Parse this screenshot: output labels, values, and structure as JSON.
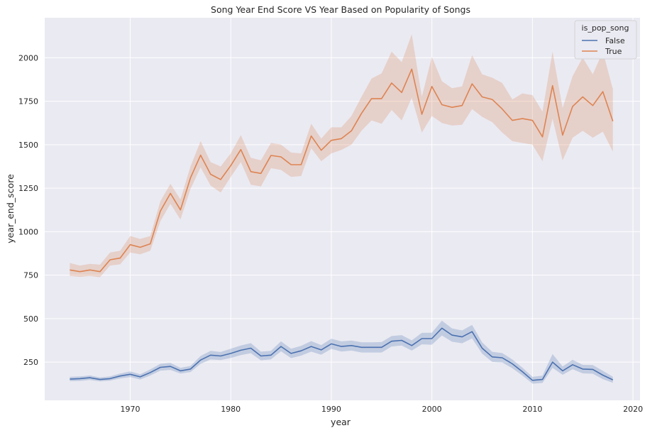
{
  "chart_data": {
    "type": "line",
    "title": "Song Year End Score VS Year Based on Popularity of Songs",
    "xlabel": "year",
    "ylabel": "year_end_score",
    "xlim": [
      1961.5,
      2020.7
    ],
    "ylim": [
      30,
      2230
    ],
    "x_ticks": [
      1970,
      1980,
      1990,
      2000,
      2010,
      2020
    ],
    "y_ticks": [
      250,
      500,
      750,
      1000,
      1250,
      1500,
      1750,
      2000
    ],
    "grid": true,
    "legend": {
      "title": "is_pop_song",
      "placement": "top-right"
    },
    "series": [
      {
        "name": "False",
        "color": "#4c72b0",
        "x": [
          1964,
          1965,
          1966,
          1967,
          1968,
          1969,
          1970,
          1971,
          1972,
          1973,
          1974,
          1975,
          1976,
          1977,
          1978,
          1979,
          1980,
          1981,
          1982,
          1983,
          1984,
          1985,
          1986,
          1987,
          1988,
          1989,
          1990,
          1991,
          1992,
          1993,
          1994,
          1995,
          1996,
          1997,
          1998,
          1999,
          2000,
          2001,
          2002,
          2003,
          2004,
          2005,
          2006,
          2007,
          2008,
          2009,
          2010,
          2011,
          2012,
          2013,
          2014,
          2015,
          2016,
          2017,
          2018
        ],
        "values": [
          152,
          155,
          160,
          150,
          155,
          170,
          180,
          165,
          190,
          220,
          225,
          200,
          210,
          262,
          290,
          285,
          300,
          318,
          330,
          285,
          290,
          340,
          300,
          315,
          340,
          320,
          355,
          340,
          345,
          335,
          335,
          335,
          370,
          375,
          345,
          385,
          385,
          445,
          405,
          395,
          425,
          330,
          280,
          275,
          240,
          195,
          145,
          150,
          250,
          200,
          235,
          210,
          208,
          175,
          148
        ],
        "lower": [
          140,
          142,
          147,
          139,
          143,
          156,
          164,
          150,
          173,
          201,
          205,
          184,
          193,
          240,
          265,
          262,
          274,
          290,
          301,
          260,
          266,
          312,
          273,
          287,
          310,
          292,
          326,
          311,
          316,
          305,
          305,
          305,
          340,
          345,
          316,
          352,
          350,
          403,
          367,
          358,
          386,
          298,
          251,
          248,
          215,
          173,
          126,
          130,
          217,
          177,
          209,
          185,
          183,
          152,
          131
        ],
        "upper": [
          165,
          168,
          173,
          162,
          168,
          184,
          196,
          180,
          208,
          240,
          245,
          217,
          228,
          285,
          315,
          308,
          327,
          345,
          359,
          310,
          315,
          369,
          327,
          343,
          371,
          348,
          384,
          369,
          374,
          364,
          364,
          365,
          400,
          405,
          375,
          418,
          419,
          488,
          444,
          432,
          464,
          363,
          309,
          302,
          265,
          218,
          165,
          172,
          296,
          225,
          263,
          234,
          233,
          200,
          166
        ]
      },
      {
        "name": "True",
        "color": "#dd8452",
        "x": [
          1964,
          1965,
          1966,
          1967,
          1968,
          1969,
          1970,
          1971,
          1972,
          1973,
          1974,
          1975,
          1976,
          1977,
          1978,
          1979,
          1980,
          1981,
          1982,
          1983,
          1984,
          1985,
          1986,
          1987,
          1988,
          1989,
          1990,
          1991,
          1992,
          1993,
          1994,
          1995,
          1996,
          1997,
          1998,
          1999,
          2000,
          2001,
          2002,
          2003,
          2004,
          2005,
          2006,
          2007,
          2008,
          2009,
          2010,
          2011,
          2012,
          2013,
          2014,
          2015,
          2016,
          2017,
          2018
        ],
        "values": [
          780,
          770,
          780,
          770,
          838,
          848,
          925,
          910,
          930,
          1118,
          1220,
          1125,
          1310,
          1440,
          1330,
          1300,
          1380,
          1472,
          1345,
          1335,
          1438,
          1430,
          1385,
          1385,
          1550,
          1468,
          1525,
          1535,
          1580,
          1680,
          1765,
          1765,
          1855,
          1800,
          1935,
          1675,
          1835,
          1730,
          1715,
          1725,
          1850,
          1775,
          1760,
          1705,
          1640,
          1650,
          1640,
          1545,
          1840,
          1555,
          1720,
          1775,
          1725,
          1805,
          1635
        ],
        "lower": [
          745,
          740,
          745,
          738,
          805,
          812,
          880,
          870,
          890,
          1060,
          1160,
          1070,
          1245,
          1370,
          1265,
          1225,
          1315,
          1400,
          1270,
          1260,
          1365,
          1355,
          1315,
          1320,
          1480,
          1405,
          1450,
          1470,
          1500,
          1580,
          1640,
          1620,
          1700,
          1640,
          1770,
          1570,
          1665,
          1625,
          1610,
          1615,
          1705,
          1660,
          1630,
          1570,
          1520,
          1510,
          1500,
          1405,
          1650,
          1410,
          1540,
          1580,
          1540,
          1575,
          1460
        ],
        "upper": [
          820,
          805,
          815,
          810,
          880,
          890,
          975,
          958,
          975,
          1175,
          1275,
          1185,
          1375,
          1520,
          1400,
          1375,
          1450,
          1555,
          1425,
          1410,
          1510,
          1500,
          1455,
          1450,
          1620,
          1535,
          1600,
          1600,
          1665,
          1775,
          1880,
          1910,
          2035,
          1975,
          2135,
          1775,
          2005,
          1865,
          1825,
          1835,
          2015,
          1905,
          1885,
          1855,
          1760,
          1795,
          1785,
          1690,
          2035,
          1710,
          1895,
          2000,
          1905,
          2035,
          1820
        ]
      }
    ]
  }
}
